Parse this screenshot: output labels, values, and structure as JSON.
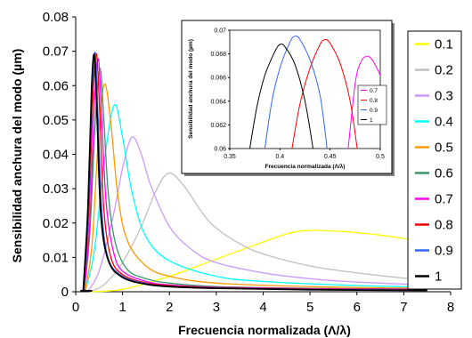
{
  "chart_data": [
    {
      "type": "line",
      "title": "",
      "xlabel": "Frecuencia normalizada (Λ/λ)",
      "ylabel": "Sensibilidad anchura del modo (µm)",
      "xlim": [
        0,
        8
      ],
      "ylim": [
        0,
        0.08
      ],
      "xticks": [
        "0",
        "1",
        "2",
        "3",
        "4",
        "5",
        "6",
        "7",
        "8"
      ],
      "yticks": [
        "0",
        "0.01",
        "0.02",
        "0.03",
        "0.04",
        "0.05",
        "0.06",
        "0.07",
        "0.08"
      ],
      "grid": false,
      "legend_position": "right",
      "series": [
        {
          "name": "0.1",
          "color": "#ffff00",
          "peak_x": 4.9,
          "peak_y": 0.0178,
          "x": [
            0.3,
            1,
            2,
            3,
            4,
            4.5,
            4.9,
            5.5,
            6,
            6.5,
            7,
            7.5
          ],
          "y": [
            0,
            0.0007,
            0.0045,
            0.0095,
            0.0145,
            0.0168,
            0.0178,
            0.0177,
            0.0172,
            0.0165,
            0.0155,
            0.0148
          ]
        },
        {
          "name": "0.2",
          "color": "#c0c0c0",
          "peak_x": 1.98,
          "peak_y": 0.0345,
          "x": [
            0.3,
            0.6,
            1,
            1.4,
            1.7,
            1.98,
            2.3,
            2.7,
            3,
            3.5,
            4,
            5,
            6,
            7,
            7.5
          ],
          "y": [
            0,
            0.002,
            0.0085,
            0.019,
            0.029,
            0.0345,
            0.031,
            0.023,
            0.0185,
            0.014,
            0.011,
            0.0075,
            0.0055,
            0.004,
            0.0035
          ]
        },
        {
          "name": "0.3",
          "color": "#cc99ff",
          "peak_x": 1.2,
          "peak_y": 0.045,
          "x": [
            0.25,
            0.5,
            0.8,
            1,
            1.2,
            1.4,
            1.6,
            2,
            2.5,
            3,
            4,
            5,
            6,
            7.5
          ],
          "y": [
            0,
            0.006,
            0.022,
            0.036,
            0.045,
            0.04,
            0.031,
            0.019,
            0.012,
            0.0085,
            0.0055,
            0.0038,
            0.0028,
            0.002
          ]
        },
        {
          "name": "0.4",
          "color": "#00ffff",
          "peak_x": 0.82,
          "peak_y": 0.0543,
          "x": [
            0.2,
            0.4,
            0.6,
            0.82,
            1,
            1.2,
            1.5,
            2,
            3,
            4,
            6,
            7.5
          ],
          "y": [
            0,
            0.012,
            0.037,
            0.0543,
            0.045,
            0.029,
            0.016,
            0.009,
            0.0045,
            0.003,
            0.0018,
            0.0014
          ]
        },
        {
          "name": "0.5",
          "color": "#ff9900",
          "peak_x": 0.62,
          "peak_y": 0.0605,
          "x": [
            0.2,
            0.35,
            0.5,
            0.62,
            0.75,
            0.9,
            1.1,
            1.5,
            2,
            3,
            5,
            7.5
          ],
          "y": [
            0,
            0.014,
            0.048,
            0.0605,
            0.049,
            0.028,
            0.015,
            0.0075,
            0.0045,
            0.0025,
            0.0015,
            0.001
          ]
        },
        {
          "name": "0.6",
          "color": "#339966",
          "peak_x": 0.52,
          "peak_y": 0.065,
          "x": [
            0.18,
            0.3,
            0.42,
            0.52,
            0.6,
            0.7,
            0.85,
            1.1,
            1.5,
            2,
            3,
            5,
            7.5
          ],
          "y": [
            0,
            0.017,
            0.05,
            0.065,
            0.05,
            0.028,
            0.014,
            0.0065,
            0.0038,
            0.0025,
            0.0015,
            0.001,
            0.0008
          ]
        },
        {
          "name": "0.7",
          "color": "#ff00ff",
          "peak_x": 0.485,
          "peak_y": 0.0678,
          "x": [
            0.18,
            0.3,
            0.4,
            0.485,
            0.55,
            0.65,
            0.8,
            1,
            1.5,
            2,
            3,
            5,
            7.5
          ],
          "y": [
            0,
            0.02,
            0.055,
            0.0678,
            0.052,
            0.026,
            0.012,
            0.006,
            0.003,
            0.002,
            0.0013,
            0.0009,
            0.0007
          ]
        },
        {
          "name": "0.8",
          "color": "#ff0000",
          "peak_x": 0.445,
          "peak_y": 0.0692,
          "x": [
            0.17,
            0.28,
            0.37,
            0.445,
            0.52,
            0.6,
            0.75,
            1,
            1.5,
            2,
            3,
            5,
            7.5
          ],
          "y": [
            0,
            0.022,
            0.057,
            0.0692,
            0.05,
            0.024,
            0.01,
            0.005,
            0.0026,
            0.0018,
            0.0012,
            0.0008,
            0.0006
          ]
        },
        {
          "name": "0.9",
          "color": "#3366ff",
          "peak_x": 0.415,
          "peak_y": 0.0695,
          "x": [
            0.17,
            0.27,
            0.35,
            0.415,
            0.48,
            0.56,
            0.7,
            1,
            1.5,
            2,
            3,
            5,
            7.5
          ],
          "y": [
            0,
            0.023,
            0.058,
            0.0695,
            0.05,
            0.023,
            0.0095,
            0.0045,
            0.0024,
            0.0016,
            0.0011,
            0.0007,
            0.0005
          ]
        },
        {
          "name": "1",
          "color": "#000000",
          "peak_x": 0.4,
          "peak_y": 0.0688,
          "x": [
            0.16,
            0.26,
            0.34,
            0.4,
            0.46,
            0.54,
            0.7,
            1,
            1.5,
            2,
            3,
            5,
            7.5
          ],
          "y": [
            0,
            0.024,
            0.059,
            0.0688,
            0.05,
            0.022,
            0.009,
            0.0042,
            0.0022,
            0.0015,
            0.001,
            0.0006,
            0.0004
          ]
        }
      ]
    },
    {
      "type": "line",
      "title": "",
      "xlabel": "Frecuencia normalizada (Λ/λ)",
      "ylabel": "Sensibilidad anchura del modo (µm)",
      "xlim": [
        0.35,
        0.5
      ],
      "ylim": [
        0.06,
        0.07
      ],
      "xticks": [
        "0.35",
        "0.4",
        "0.45",
        "0.5"
      ],
      "yticks": [
        "0.06",
        "0.062",
        "0.064",
        "0.066",
        "0.068",
        "0.07"
      ],
      "legend_position": "right",
      "series": [
        {
          "name": "0.7",
          "color": "#ff00ff",
          "x": [
            0.468,
            0.475,
            0.48,
            0.486,
            0.492,
            0.5
          ],
          "y": [
            0.06,
            0.0655,
            0.0672,
            0.0678,
            0.0675,
            0.0662
          ]
        },
        {
          "name": "0.8",
          "color": "#ff0000",
          "x": [
            0.412,
            0.42,
            0.43,
            0.44,
            0.445,
            0.45,
            0.46,
            0.47,
            0.477
          ],
          "y": [
            0.06,
            0.0638,
            0.0668,
            0.0688,
            0.0692,
            0.0689,
            0.0672,
            0.064,
            0.06
          ]
        },
        {
          "name": "0.9",
          "color": "#3366ff",
          "x": [
            0.385,
            0.392,
            0.4,
            0.41,
            0.415,
            0.42,
            0.43,
            0.44,
            0.447
          ],
          "y": [
            0.06,
            0.064,
            0.0668,
            0.069,
            0.0695,
            0.0692,
            0.0675,
            0.0645,
            0.06
          ]
        },
        {
          "name": "1",
          "color": "#000000",
          "x": [
            0.37,
            0.377,
            0.385,
            0.395,
            0.4,
            0.405,
            0.415,
            0.425,
            0.433
          ],
          "y": [
            0.06,
            0.0635,
            0.0662,
            0.0682,
            0.0688,
            0.0686,
            0.0671,
            0.064,
            0.06
          ]
        }
      ]
    }
  ]
}
